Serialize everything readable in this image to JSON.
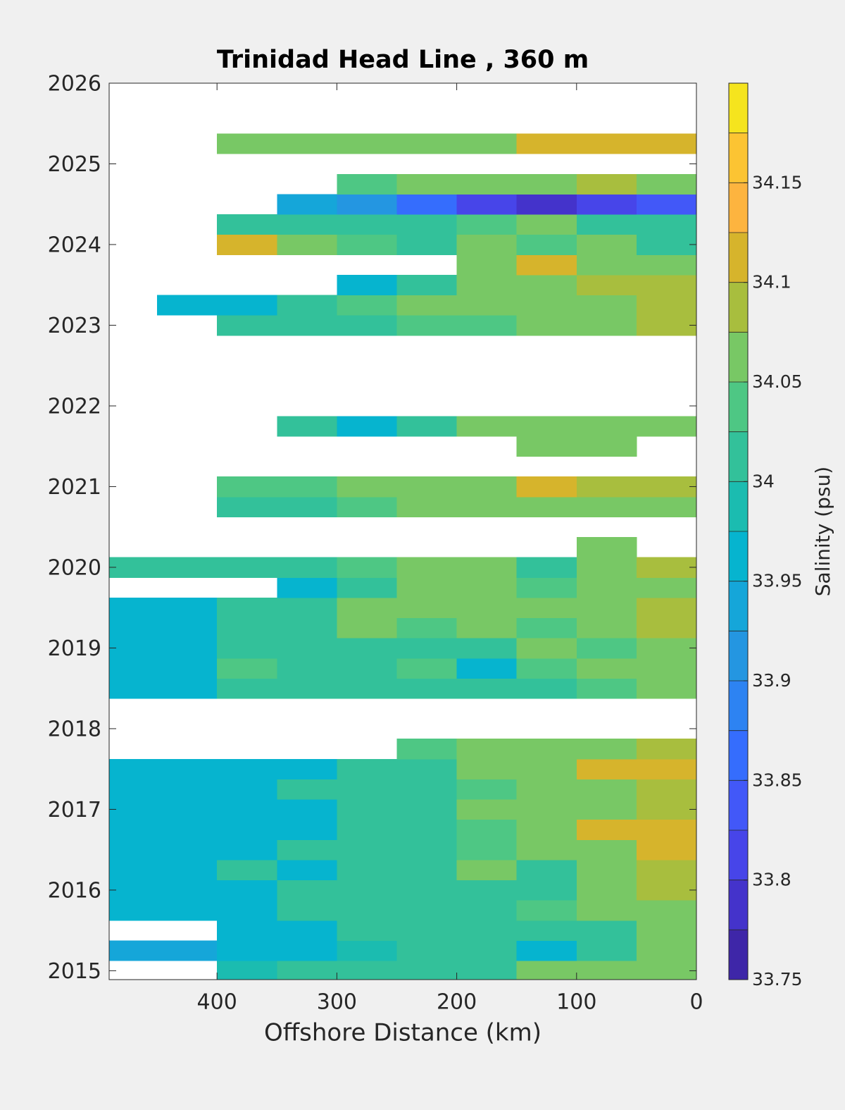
{
  "chart_data": {
    "type": "contour",
    "title": "Trinidad Head Line , 360 m",
    "xlabel": "Offshore Distance (km)",
    "colorbar_label": "Salinity (psu)",
    "xlim": [
      490,
      0
    ],
    "ylim": [
      2014.89,
      2026
    ],
    "xticks": [
      400,
      300,
      200,
      100,
      0
    ],
    "yticks": [
      2015,
      2016,
      2017,
      2018,
      2019,
      2020,
      2021,
      2022,
      2023,
      2024,
      2025,
      2026
    ],
    "clim": [
      33.75,
      34.2
    ],
    "cticks": [
      33.75,
      33.8,
      33.85,
      33.9,
      33.95,
      34,
      34.05,
      34.1,
      34.15
    ],
    "colors": [
      "#3e26a8",
      "#4433cb",
      "#4745e9",
      "#4258f8",
      "#356dfd",
      "#2d83f2",
      "#2496e1",
      "#15a6d9",
      "#06b4cf",
      "#1bbcb0",
      "#33c19a",
      "#4ec784",
      "#78c865",
      "#a8be3e",
      "#d6b42c",
      "#fdb43f",
      "#fcc433",
      "#f5e41e"
    ],
    "x": [
      475,
      425,
      375,
      325,
      275,
      225,
      175,
      125,
      75,
      25
    ],
    "y": [
      2015,
      2015.25,
      2015.5,
      2015.75,
      2016,
      2016.25,
      2016.5,
      2016.75,
      2017,
      2017.25,
      2017.5,
      2017.75,
      2018,
      2018.25,
      2018.5,
      2018.75,
      2019,
      2019.25,
      2019.5,
      2019.75,
      2020,
      2020.25,
      2020.5,
      2020.75,
      2021,
      2021.25,
      2021.5,
      2021.75,
      2022,
      2022.25,
      2022.5,
      2022.75,
      2023,
      2023.25,
      2023.5,
      2023.75,
      2024,
      2024.25,
      2024.5,
      2024.75,
      2025,
      2025.25
    ],
    "z": [
      [
        null,
        null,
        33.98,
        34.02,
        34.0,
        34.0,
        34.02,
        34.05,
        34.07,
        34.07
      ],
      [
        33.93,
        33.93,
        33.95,
        33.97,
        33.98,
        34.0,
        34.0,
        33.97,
        34.0,
        34.05
      ],
      [
        null,
        null,
        33.95,
        33.97,
        34.0,
        34.0,
        34.02,
        34.0,
        34.02,
        34.07
      ],
      [
        33.95,
        33.95,
        33.97,
        34.0,
        34.02,
        34.02,
        34.0,
        34.03,
        34.05,
        34.07
      ],
      [
        33.95,
        33.97,
        33.97,
        34.0,
        34.0,
        34.02,
        34.0,
        34.02,
        34.05,
        34.08
      ],
      [
        33.95,
        33.97,
        34.0,
        33.97,
        34.02,
        34.0,
        34.05,
        34.02,
        34.05,
        34.08
      ],
      [
        33.97,
        33.97,
        33.97,
        34.0,
        34.0,
        34.02,
        34.03,
        34.05,
        34.07,
        34.1
      ],
      [
        33.97,
        33.97,
        33.97,
        33.97,
        34.0,
        34.02,
        34.03,
        34.05,
        34.1,
        34.1
      ],
      [
        33.97,
        33.97,
        33.97,
        33.97,
        34.0,
        34.02,
        34.05,
        34.05,
        34.07,
        34.08
      ],
      [
        33.97,
        33.97,
        33.97,
        34.0,
        34.0,
        34.02,
        34.03,
        34.05,
        34.07,
        34.08
      ],
      [
        33.95,
        33.97,
        33.97,
        33.97,
        34.0,
        34.02,
        34.05,
        34.05,
        34.12,
        34.1
      ],
      [
        null,
        null,
        null,
        null,
        null,
        34.03,
        34.07,
        34.05,
        34.07,
        34.08
      ],
      [
        null,
        null,
        null,
        null,
        null,
        null,
        null,
        null,
        null,
        null
      ],
      [
        null,
        null,
        null,
        null,
        null,
        null,
        null,
        null,
        null,
        null
      ],
      [
        33.95,
        33.97,
        34.0,
        34.0,
        34.0,
        34.0,
        34.02,
        34.02,
        34.03,
        34.05
      ],
      [
        33.95,
        33.97,
        34.03,
        34.0,
        34.02,
        34.03,
        33.95,
        34.03,
        34.05,
        34.07
      ],
      [
        33.97,
        33.97,
        34.0,
        34.0,
        34.0,
        34.02,
        34.0,
        34.05,
        34.03,
        34.05
      ],
      [
        33.95,
        33.97,
        34.0,
        34.02,
        34.05,
        34.03,
        34.05,
        34.03,
        34.07,
        34.08
      ],
      [
        33.95,
        33.97,
        34.0,
        34.02,
        34.05,
        34.05,
        34.05,
        34.05,
        34.07,
        34.08
      ],
      [
        null,
        null,
        null,
        33.97,
        34.02,
        34.05,
        34.05,
        34.03,
        34.07,
        34.07
      ],
      [
        34.0,
        34.02,
        34.0,
        34.02,
        34.03,
        34.05,
        34.05,
        34.0,
        34.05,
        34.08
      ],
      [
        null,
        null,
        null,
        null,
        null,
        null,
        null,
        null,
        34.05,
        null
      ],
      [
        null,
        null,
        null,
        null,
        null,
        null,
        null,
        null,
        null,
        null
      ],
      [
        null,
        null,
        34.02,
        34.02,
        34.03,
        34.05,
        34.05,
        34.07,
        34.05,
        34.05
      ],
      [
        null,
        null,
        34.03,
        34.03,
        34.05,
        34.05,
        34.07,
        34.1,
        34.08,
        34.08
      ],
      [
        null,
        null,
        null,
        null,
        null,
        null,
        null,
        null,
        null,
        null
      ],
      [
        null,
        null,
        null,
        null,
        null,
        null,
        null,
        34.05,
        34.05,
        null
      ],
      [
        null,
        null,
        null,
        34.0,
        33.97,
        34.0,
        34.05,
        34.05,
        34.07,
        34.07
      ],
      [
        null,
        null,
        null,
        null,
        null,
        null,
        null,
        null,
        null,
        null
      ],
      [
        null,
        null,
        null,
        null,
        null,
        null,
        null,
        null,
        null,
        null
      ],
      [
        null,
        null,
        null,
        null,
        null,
        null,
        null,
        null,
        null,
        null
      ],
      [
        null,
        null,
        null,
        null,
        null,
        null,
        null,
        null,
        null,
        null
      ],
      [
        null,
        null,
        34.0,
        34.0,
        34.02,
        34.03,
        34.03,
        34.05,
        34.07,
        34.08
      ],
      [
        null,
        33.95,
        33.97,
        34.0,
        34.03,
        34.05,
        34.05,
        34.07,
        34.07,
        34.08
      ],
      [
        null,
        null,
        null,
        null,
        33.95,
        34.0,
        34.05,
        34.07,
        34.08,
        34.08
      ],
      [
        null,
        null,
        null,
        null,
        null,
        null,
        34.05,
        34.1,
        34.05,
        34.07
      ],
      [
        null,
        null,
        34.1,
        34.05,
        34.03,
        34.02,
        34.05,
        34.03,
        34.05,
        34.0
      ],
      [
        null,
        null,
        34.0,
        34.0,
        34.0,
        34.02,
        34.03,
        34.05,
        34.02,
        34.02
      ],
      [
        null,
        null,
        null,
        33.93,
        33.9,
        33.85,
        33.8,
        33.78,
        33.8,
        33.83
      ],
      [
        null,
        null,
        null,
        null,
        34.03,
        34.05,
        34.05,
        34.05,
        34.08,
        34.05
      ],
      [
        null,
        null,
        null,
        null,
        null,
        null,
        null,
        null,
        null,
        null
      ],
      [
        null,
        null,
        34.05,
        34.05,
        34.05,
        34.05,
        34.07,
        34.1,
        34.1,
        34.1
      ]
    ]
  }
}
